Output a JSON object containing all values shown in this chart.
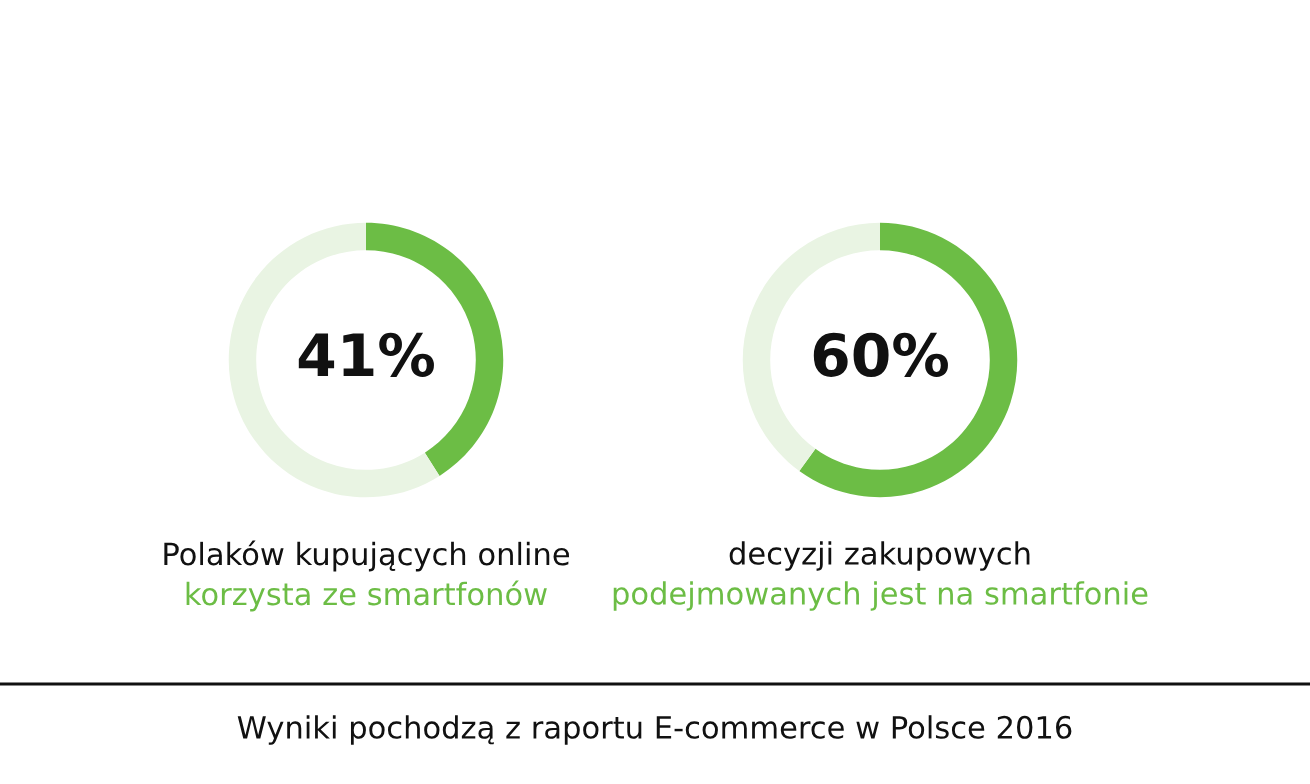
{
  "chart_data": [
    {
      "type": "donut",
      "categories": [
        null,
        null
      ],
      "values": [
        41,
        59
      ],
      "colors": [
        "#6cbd45",
        "#e9f4e3"
      ],
      "value_labels": [
        "41%",
        null
      ],
      "title": "Polaków kupujących online",
      "subtitle": "korzysta ze smartfonów",
      "annotations": [
        "Wyniki pochodzą z raportu E-commerce w Polsce 2016"
      ]
    },
    {
      "type": "donut",
      "categories": [
        null,
        null
      ],
      "values": [
        60,
        40
      ],
      "colors": [
        "#6cbd45",
        "#e9f4e3"
      ],
      "value_labels": [
        "60%",
        null
      ],
      "title": "decyzji zakupowych",
      "subtitle": "podejmowanych jest na smartfonie"
    }
  ]
}
